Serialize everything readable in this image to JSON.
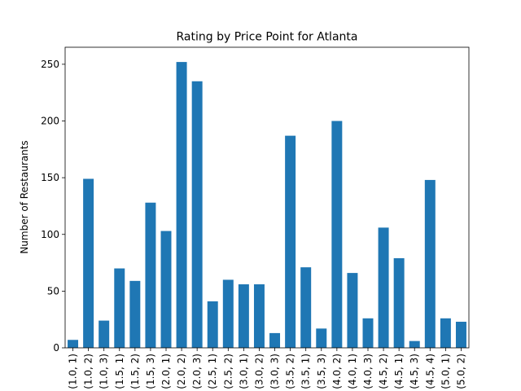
{
  "chart_data": {
    "type": "bar",
    "title": "Rating by Price Point for Atlanta",
    "xlabel": "",
    "ylabel": "Number of Restaurants",
    "ylim": [
      0,
      265
    ],
    "yticks": [
      0,
      50,
      100,
      150,
      200,
      250
    ],
    "grid": false,
    "legend": "none",
    "color": "#1f77b4",
    "categories": [
      "(1.0, 1)",
      "(1.0, 2)",
      "(1.0, 3)",
      "(1.5, 1)",
      "(1.5, 2)",
      "(1.5, 3)",
      "(2.0, 1)",
      "(2.0, 2)",
      "(2.0, 3)",
      "(2.5, 1)",
      "(2.5, 2)",
      "(3.0, 1)",
      "(3.0, 2)",
      "(3.0, 3)",
      "(3.5, 2)",
      "(3.5, 1)",
      "(3.5, 3)",
      "(4.0, 2)",
      "(4.0, 1)",
      "(4.0, 3)",
      "(4.5, 2)",
      "(4.5, 1)",
      "(4.5, 3)",
      "(4.5, 4)",
      "(5.0, 1)",
      "(5.0, 2)"
    ],
    "values": [
      7,
      149,
      24,
      70,
      59,
      128,
      103,
      252,
      235,
      41,
      60,
      56,
      56,
      13,
      187,
      71,
      17,
      200,
      66,
      26,
      106,
      79,
      6,
      148,
      26,
      23
    ]
  }
}
